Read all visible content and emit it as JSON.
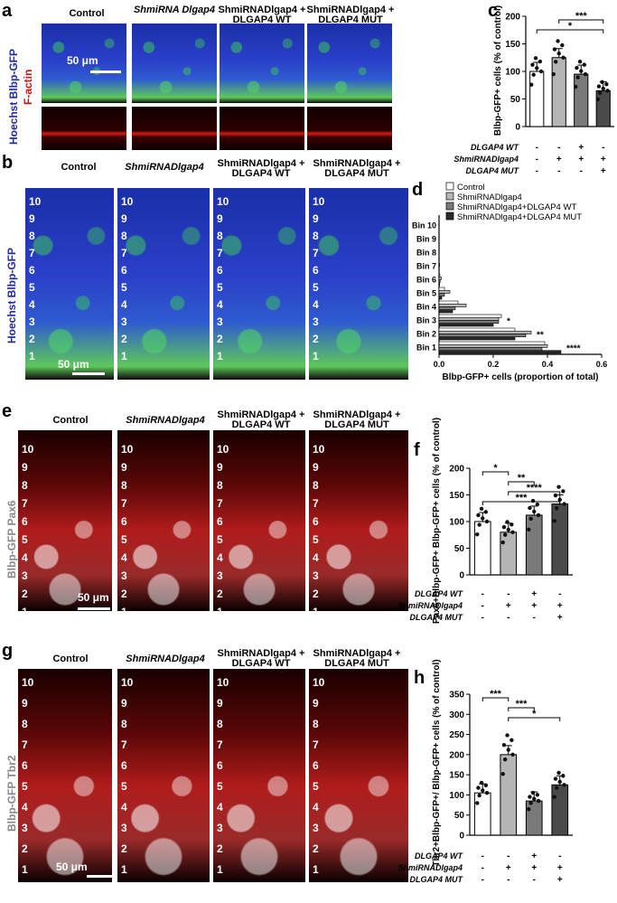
{
  "panel_letters": [
    "a",
    "b",
    "c",
    "d",
    "e",
    "f",
    "g",
    "h"
  ],
  "panel_a": {
    "columns": [
      "Control",
      "ShmiRNA Dlgap4",
      "ShmiRNADlgap4 + DLGAP4 WT",
      "ShmiRNADlgap4 + DLGAP4 MUT"
    ],
    "side_label_top": "Hoechst Blbp-GFP",
    "side_label_bottom": "F-actin",
    "scale": "50 μm"
  },
  "panel_b": {
    "columns": [
      "Control",
      "ShmiRNADlgap4",
      "ShmiRNADlgap4 + DLGAP4 WT",
      "ShmiRNADlgap4 + DLGAP4 MUT"
    ],
    "side_label": "Hoechst Blbp-GFP",
    "bins": [
      "10",
      "9",
      "8",
      "7",
      "6",
      "5",
      "4",
      "3",
      "2",
      "1"
    ],
    "scale": "50 μm"
  },
  "panel_e": {
    "columns": [
      "Control",
      "ShmiRNADlgap4",
      "ShmiRNADlgap4 + DLGAP4 WT",
      "ShmiRNADlgap4 + DLGAP4 MUT"
    ],
    "side_label": "Blbp-GFP Pax6",
    "bins": [
      "10",
      "9",
      "8",
      "7",
      "6",
      "5",
      "4",
      "3",
      "2",
      "1"
    ],
    "scale": "50 μm"
  },
  "panel_g": {
    "columns": [
      "Control",
      "ShmiRNADlgap4",
      "ShmiRNADlgap4 + DLGAP4 WT",
      "ShmiRNADlgap4 + DLGAP4 MUT"
    ],
    "side_label": "Blbp-GFP Tbr2",
    "bins": [
      "10",
      "9",
      "8",
      "7",
      "6",
      "5",
      "4",
      "3",
      "2",
      "1"
    ],
    "scale": "50 μm"
  },
  "row_labels": [
    "DLGAP4 WT",
    "ShmiRNADlgap4",
    "DLGAP4 MUT"
  ],
  "chart_data": [
    {
      "panel": "c",
      "type": "bar",
      "ylabel": "Blbp-GFP+ cells (% of control)",
      "ylim": [
        0,
        200
      ],
      "yticks": [
        0,
        50,
        100,
        150,
        200
      ],
      "values": [
        100,
        125,
        95,
        65
      ],
      "fills": [
        "#ffffff",
        "#b5b5b5",
        "#7a7a7a",
        "#4a4a4a"
      ],
      "conditions": [
        [
          "-",
          "-",
          "+",
          "-"
        ],
        [
          "-",
          "+",
          "+",
          "+"
        ],
        [
          "-",
          "-",
          "-",
          "+"
        ]
      ],
      "significance": [
        {
          "from": 1,
          "to": 3,
          "label": "***"
        },
        {
          "from": 0,
          "to": 3,
          "label": "*"
        }
      ]
    },
    {
      "panel": "d",
      "type": "bar",
      "orientation": "horizontal",
      "xlabel": "Blbp-GFP+ cells (proportion of total)",
      "xlim": [
        0,
        0.6
      ],
      "xticks": [
        "0.0",
        "0.2",
        "0.4",
        "0.6"
      ],
      "categories": [
        "Bin 10",
        "Bin 9",
        "Bin 8",
        "Bin 7",
        "Bin 6",
        "Bin 5",
        "Bin 4",
        "Bin 3",
        "Bin 2",
        "Bin 1"
      ],
      "series": [
        {
          "name": "Control",
          "values": [
            0,
            0,
            0,
            0,
            0.003,
            0.02,
            0.07,
            0.23,
            0.28,
            0.39
          ]
        },
        {
          "name": "ShmiRNADlgap4",
          "values": [
            0,
            0,
            0,
            0.002,
            0.008,
            0.04,
            0.1,
            0.22,
            0.34,
            0.4
          ]
        },
        {
          "name": "ShmiRNADlgap4+DLGAP4 WT",
          "values": [
            0,
            0,
            0,
            0.001,
            0.004,
            0.02,
            0.06,
            0.22,
            0.32,
            0.38
          ]
        },
        {
          "name": "ShmiRNADlgap4+DLGAP4 MUT",
          "values": [
            0,
            0,
            0,
            0,
            0.002,
            0.01,
            0.05,
            0.2,
            0.28,
            0.45
          ]
        }
      ],
      "fills": [
        "#ffffff",
        "#b5b5b5",
        "#7a7a7a",
        "#2a2a2a"
      ],
      "significance": [
        "",
        "",
        "",
        "",
        "",
        "",
        "",
        "*",
        "**",
        "****"
      ],
      "legend_position": "top-right"
    },
    {
      "panel": "f",
      "type": "bar",
      "ylabel": "Pax6+Blbp-GFP+ Blbp-GFP+ cells (% of control)",
      "ylim": [
        0,
        200
      ],
      "yticks": [
        0,
        50,
        100,
        150,
        200
      ],
      "values": [
        100,
        80,
        112,
        133
      ],
      "fills": [
        "#ffffff",
        "#b5b5b5",
        "#7a7a7a",
        "#4a4a4a"
      ],
      "conditions": [
        [
          "-",
          "-",
          "+",
          "-"
        ],
        [
          "-",
          "+",
          "+",
          "+"
        ],
        [
          "-",
          "-",
          "-",
          "+"
        ]
      ],
      "significance": [
        {
          "from": 0,
          "to": 1,
          "label": "*"
        },
        {
          "from": 1,
          "to": 2,
          "label": "**"
        },
        {
          "from": 1,
          "to": 3,
          "label": "****"
        },
        {
          "from": 0,
          "to": 3,
          "label": "***"
        }
      ]
    },
    {
      "panel": "h",
      "type": "bar",
      "ylabel": "Tbr2+Blbp-GFP+/ Blbp-GFP+ cells (% of control)",
      "ylim": [
        0,
        350
      ],
      "yticks": [
        0,
        50,
        100,
        150,
        200,
        250,
        300,
        350
      ],
      "values": [
        105,
        200,
        85,
        125
      ],
      "fills": [
        "#ffffff",
        "#b5b5b5",
        "#7a7a7a",
        "#4a4a4a"
      ],
      "conditions": [
        [
          "-",
          "-",
          "+",
          "-"
        ],
        [
          "-",
          "+",
          "+",
          "+"
        ],
        [
          "-",
          "-",
          "-",
          "+"
        ]
      ],
      "significance": [
        {
          "from": 0,
          "to": 1,
          "label": "***"
        },
        {
          "from": 1,
          "to": 2,
          "label": "***"
        },
        {
          "from": 1,
          "to": 3,
          "label": "*"
        }
      ]
    }
  ]
}
